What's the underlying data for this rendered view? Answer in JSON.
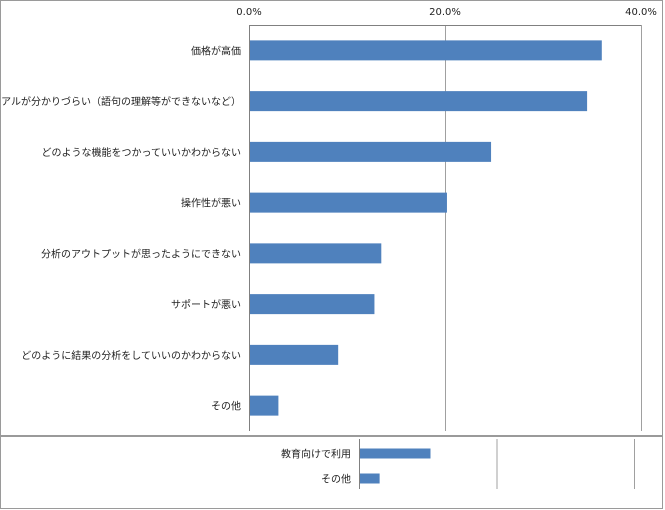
{
  "chart_data": [
    {
      "type": "bar",
      "orientation": "horizontal",
      "categories": [
        "価格が高価",
        "マニュアルが分かりづらい（語句の理解等ができないなど）",
        "どのような機能をつかっていいかわからない",
        "操作性が悪い",
        "分析のアウトプットが思ったようにできない",
        "サポートが悪い",
        "どのように結果の分析をしていいのかわからない",
        "その他"
      ],
      "values": [
        36.0,
        34.5,
        24.7,
        20.2,
        13.5,
        12.8,
        9.1,
        3.0
      ],
      "xlim": [
        0,
        40
      ],
      "x_tick_labels": [
        "0.0%",
        "20.0%",
        "40.0%"
      ],
      "x_ticks": [
        0,
        20,
        40
      ],
      "x_axis_position": "top",
      "grid": true,
      "bar_color": "#4f81bd"
    },
    {
      "type": "bar",
      "orientation": "horizontal",
      "categories": [
        "教育向けで利用",
        "その他"
      ],
      "values": [
        26.0,
        7.5
      ],
      "xlim": [
        0,
        100
      ],
      "grid": true,
      "bar_color": "#4f81bd"
    }
  ]
}
